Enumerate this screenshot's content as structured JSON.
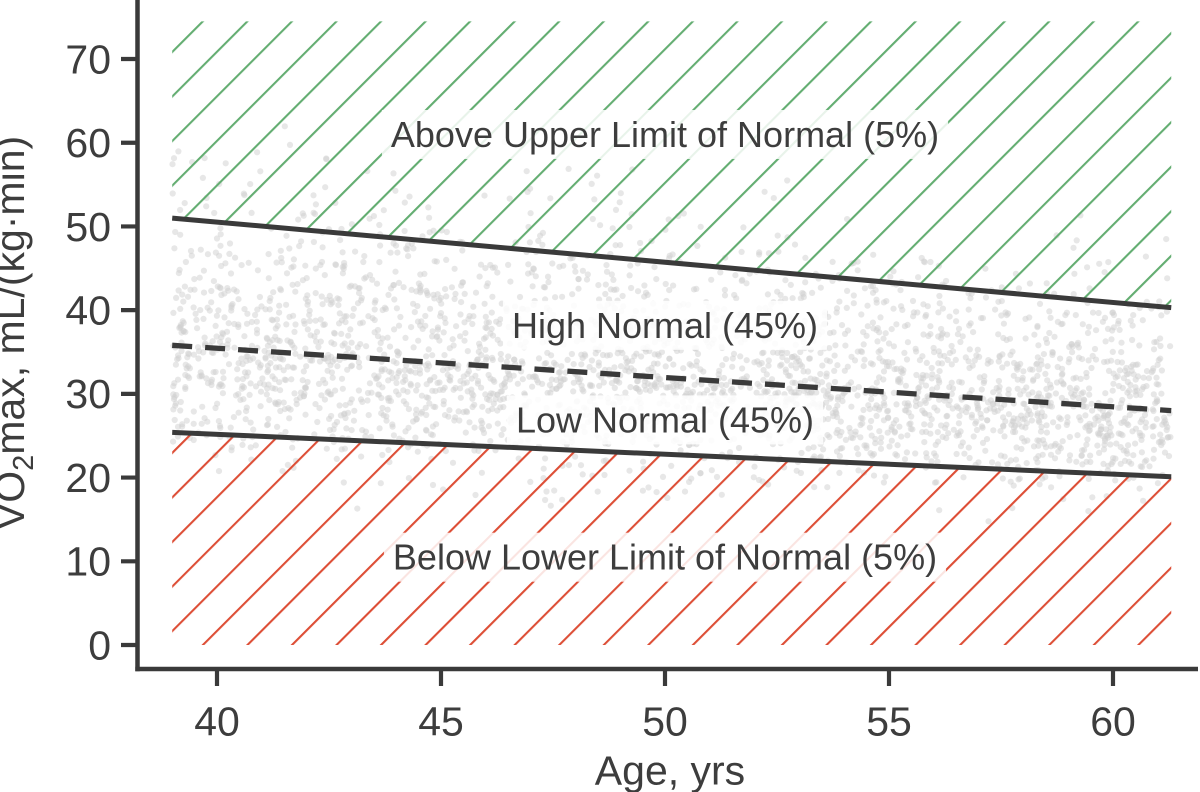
{
  "chart_data": {
    "type": "scatter",
    "title": "",
    "xlabel": "Age, yrs",
    "ylabel": "VO₂max, mL/(kg·min)",
    "ylabel_parts": {
      "prefix": "VO",
      "subscript": "2",
      "suffix": "max, mL/(kg·min)"
    },
    "xlim": [
      38.2,
      61.9
    ],
    "ylim": [
      -2.9,
      77.1
    ],
    "x_ticks": [
      "40",
      "45",
      "50",
      "55",
      "60"
    ],
    "x_tick_values": [
      40,
      45,
      50,
      55,
      60
    ],
    "y_ticks": [
      "0",
      "10",
      "20",
      "30",
      "40",
      "50",
      "60",
      "70"
    ],
    "y_tick_values": [
      0,
      10,
      20,
      30,
      40,
      50,
      60,
      70
    ],
    "grid": false,
    "legend": "none",
    "age_range": [
      39,
      61.3
    ],
    "lines": [
      {
        "name": "upper-limit-line",
        "style": "solid",
        "points": [
          [
            39,
            51.0
          ],
          [
            61.3,
            40.3
          ]
        ]
      },
      {
        "name": "median-line",
        "style": "dashed",
        "points": [
          [
            39,
            35.8
          ],
          [
            61.3,
            28.0
          ]
        ]
      },
      {
        "name": "lower-limit-line",
        "style": "solid",
        "points": [
          [
            39,
            25.4
          ],
          [
            61.3,
            20.1
          ]
        ]
      }
    ],
    "zones": [
      {
        "name": "above-upper-zone",
        "label": "Above Upper Limit of Normal (5%)",
        "percent": "5%",
        "hatch": "green",
        "between": [
          "upper-limit-line",
          74.5
        ],
        "label_pos": [
          50,
          61.0
        ]
      },
      {
        "name": "high-normal-zone",
        "label": "High Normal (45%)",
        "percent": "45%",
        "hatch": "none",
        "between": [
          "median-line",
          "upper-limit-line"
        ],
        "label_pos": [
          50,
          38.2
        ]
      },
      {
        "name": "low-normal-zone",
        "label": "Low Normal (45%)",
        "percent": "45%",
        "hatch": "none",
        "between": [
          "lower-limit-line",
          "median-line"
        ],
        "label_pos": [
          50,
          26.9
        ]
      },
      {
        "name": "below-lower-zone",
        "label": "Below Lower Limit of Normal (5%)",
        "percent": "5%",
        "hatch": "red",
        "between": [
          0,
          "lower-limit-line"
        ],
        "label_pos": [
          50,
          10.5
        ]
      }
    ],
    "scatter": {
      "n": 3000,
      "description": "individual subjects, VO2max vs age; ~5% above upper limit, 45% high normal, 45% low normal, ~5% below lower limit",
      "tail_fraction_beyond_each_limit": 0.05
    },
    "colors": {
      "hatch_green": "#63ad71",
      "hatch_red": "#dd4e36",
      "line_dark": "#3a3a3a",
      "text": "#3d3d3d",
      "scatter_dot": "#cfcfcf",
      "label_box": "rgba(255,255,255,0.85)",
      "background": "#ffffff"
    }
  }
}
